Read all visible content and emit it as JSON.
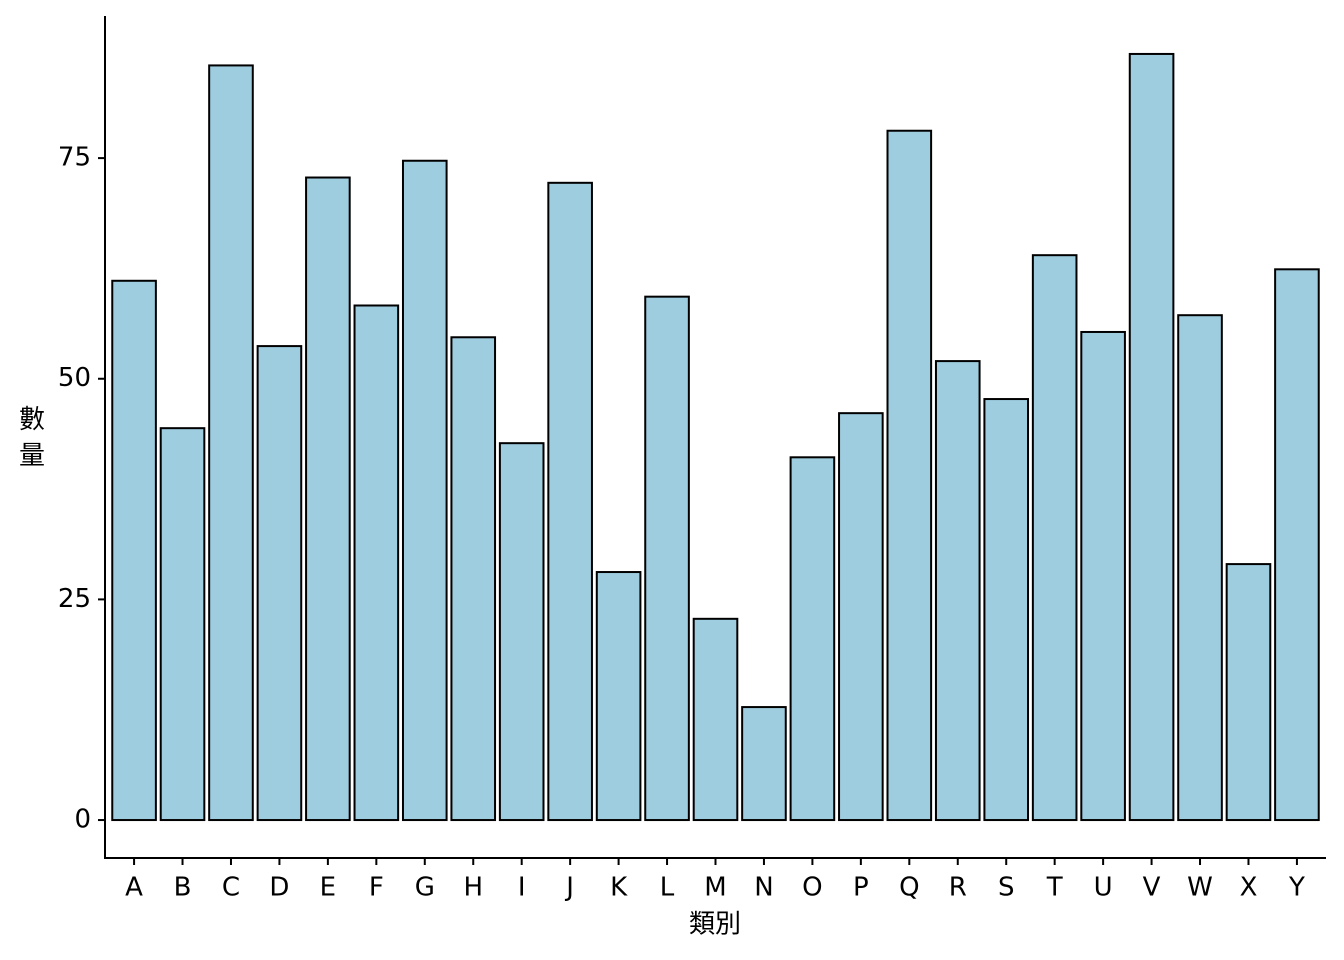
{
  "chart_data": {
    "type": "bar",
    "x_label": "類別",
    "y_label": "數量",
    "categories": [
      "A",
      "B",
      "C",
      "D",
      "E",
      "F",
      "G",
      "H",
      "I",
      "J",
      "K",
      "L",
      "M",
      "N",
      "O",
      "P",
      "Q",
      "R",
      "S",
      "T",
      "U",
      "V",
      "W",
      "X",
      "Y"
    ],
    "values": [
      61.1,
      44.4,
      85.5,
      53.7,
      72.8,
      58.3,
      74.7,
      54.7,
      42.7,
      72.2,
      28.1,
      59.3,
      22.8,
      12.8,
      41.1,
      46.1,
      78.1,
      52.0,
      47.7,
      64.0,
      55.3,
      86.8,
      57.2,
      29.0,
      62.4
    ],
    "color": "#9ecde0",
    "edge_color": "#000000",
    "ylim": [
      -4.3,
      91.1
    ],
    "yticks": [
      0,
      25,
      50,
      75
    ],
    "grid": false
  }
}
